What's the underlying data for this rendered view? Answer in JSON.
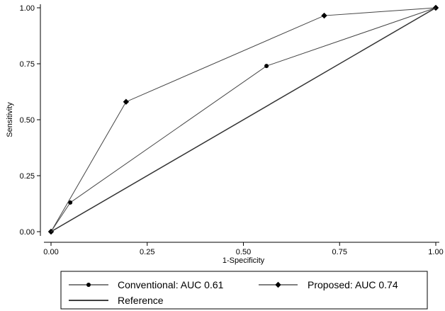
{
  "chart_data": {
    "type": "line",
    "xlabel": "1-Specificity",
    "ylabel": "Sensitivity",
    "xlim": [
      0,
      1
    ],
    "ylim": [
      0,
      1
    ],
    "x_ticks": [
      "0.00",
      "0.25",
      "0.50",
      "0.75",
      "1.00"
    ],
    "y_ticks": [
      "0.00",
      "0.25",
      "0.50",
      "0.75",
      "1.00"
    ],
    "grid": false,
    "legend_position": "bottom",
    "series": [
      {
        "name": "Conventional: AUC 0.61",
        "marker": "circle",
        "x": [
          0,
          0.05,
          0.56,
          1.0
        ],
        "y": [
          0,
          0.13,
          0.74,
          1.0
        ]
      },
      {
        "name": "Proposed: AUC 0.74",
        "marker": "diamond",
        "x": [
          0,
          0.195,
          0.71,
          1.0
        ],
        "y": [
          0,
          0.58,
          0.965,
          1.0
        ]
      },
      {
        "name": "Reference",
        "marker": "none",
        "x": [
          0,
          1.0
        ],
        "y": [
          0,
          1.0
        ]
      }
    ]
  }
}
